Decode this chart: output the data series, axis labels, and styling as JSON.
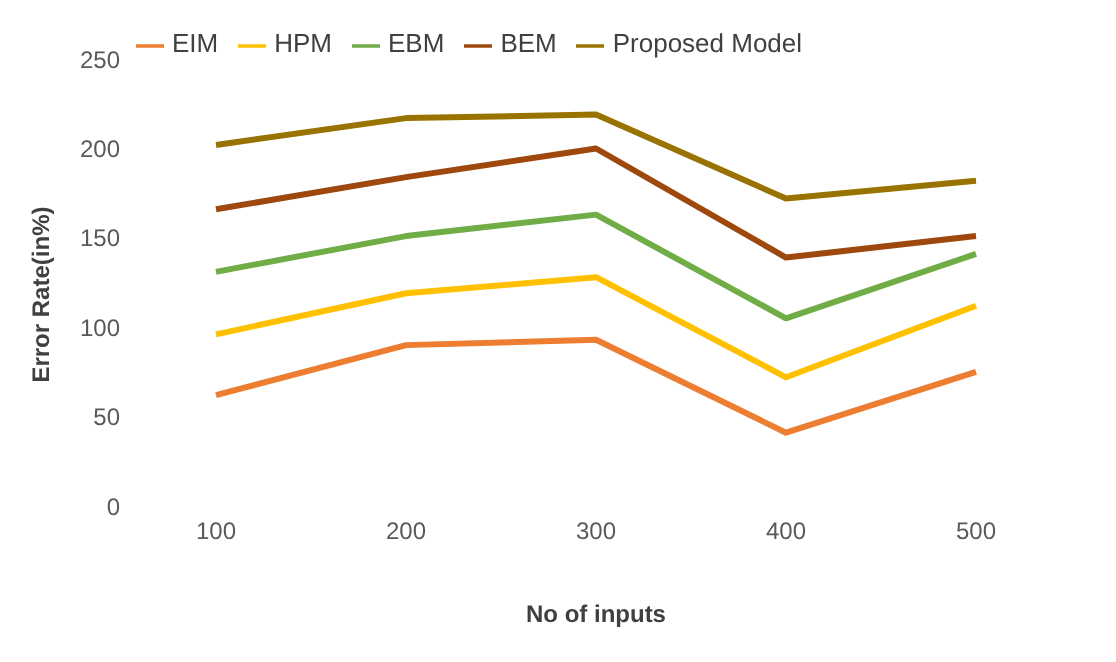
{
  "chart_data": {
    "type": "line",
    "xlabel": "No of inputs",
    "ylabel": "Error Rate(in%)",
    "categories": [
      "100",
      "200",
      "300",
      "400",
      "500"
    ],
    "series": [
      {
        "name": "EIM",
        "color": "#ed7d31",
        "values": [
          62,
          90,
          93,
          41,
          75
        ]
      },
      {
        "name": "HPM",
        "color": "#ffc000",
        "values": [
          96,
          119,
          128,
          72,
          112
        ]
      },
      {
        "name": "EBM",
        "color": "#70ad47",
        "values": [
          131,
          151,
          163,
          105,
          141
        ]
      },
      {
        "name": "BEM",
        "color": "#9e480e",
        "values": [
          166,
          184,
          200,
          139,
          151
        ]
      },
      {
        "name": "Proposed Model",
        "color": "#997300",
        "values": [
          202,
          217,
          219,
          172,
          182
        ]
      }
    ],
    "ylim": [
      0,
      250
    ],
    "yticks": [
      0,
      50,
      100,
      150,
      200,
      250
    ],
    "legend": "top",
    "grid": false,
    "marker": "none",
    "line_style": "solid"
  }
}
